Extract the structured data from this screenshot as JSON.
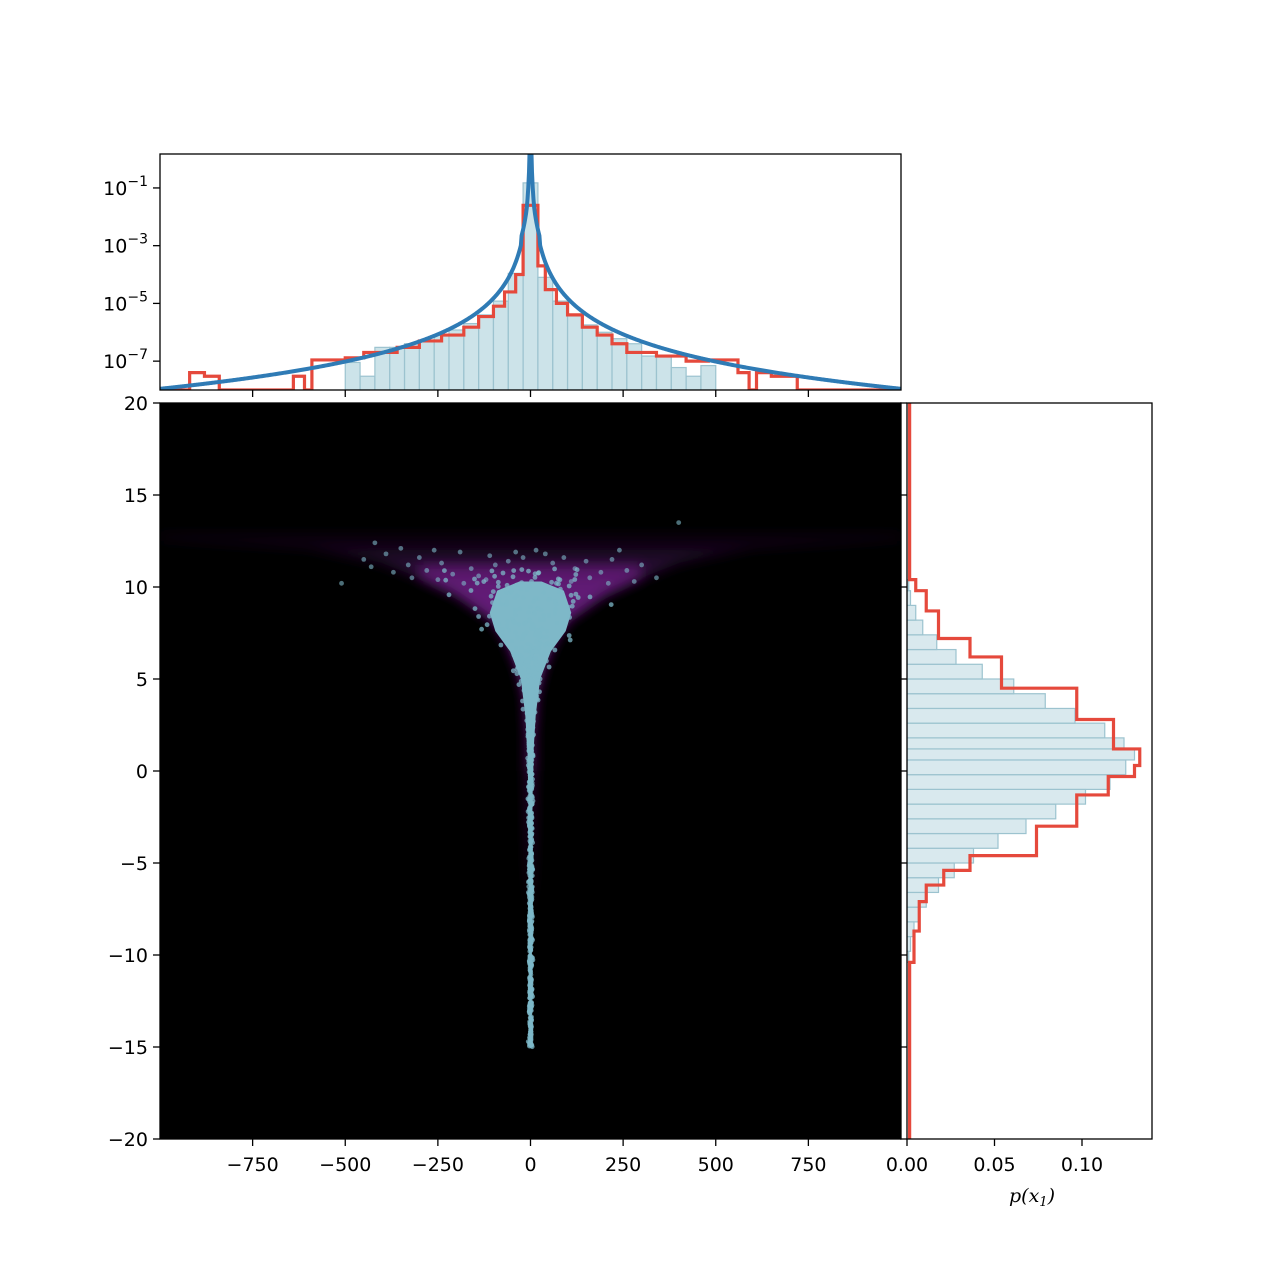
{
  "chart_data": [
    {
      "panel": "top-marginal",
      "type": "histogram+line",
      "yscale": "log",
      "xlim": [
        -1000,
        1000
      ],
      "ylim": [
        1e-08,
        1.5
      ],
      "xticks": [
        -750,
        -500,
        -250,
        0,
        250,
        500,
        750
      ],
      "yticks": [
        {
          "value": 0.1,
          "base": "10",
          "exp": "−1"
        },
        {
          "value": 0.001,
          "base": "10",
          "exp": "−3"
        },
        {
          "value": 1e-05,
          "base": "10",
          "exp": "−5"
        },
        {
          "value": 1e-07,
          "base": "10",
          "exp": "−7"
        }
      ],
      "samples_hist": {
        "color": "#b7d7e0",
        "edge": "#9cc3cf",
        "bins": [
          [
            -500,
            -460,
            9e-08
          ],
          [
            -460,
            -420,
            3e-08
          ],
          [
            -420,
            -380,
            3e-07
          ],
          [
            -380,
            -340,
            3e-07
          ],
          [
            -340,
            -300,
            4e-07
          ],
          [
            -300,
            -260,
            5e-07
          ],
          [
            -260,
            -220,
            8e-07
          ],
          [
            -220,
            -180,
            1.2e-06
          ],
          [
            -180,
            -140,
            2e-06
          ],
          [
            -140,
            -100,
            4e-06
          ],
          [
            -100,
            -60,
            1.2e-05
          ],
          [
            -60,
            -20,
            0.00011
          ],
          [
            -20,
            20,
            0.15
          ],
          [
            20,
            60,
            8e-05
          ],
          [
            60,
            100,
            1.2e-05
          ],
          [
            100,
            140,
            4e-06
          ],
          [
            140,
            180,
            1.8e-06
          ],
          [
            180,
            220,
            1e-06
          ],
          [
            220,
            260,
            6e-07
          ],
          [
            260,
            300,
            4e-07
          ],
          [
            300,
            340,
            1.5e-07
          ],
          [
            340,
            380,
            1.5e-07
          ],
          [
            380,
            420,
            6e-08
          ],
          [
            420,
            460,
            3e-08
          ],
          [
            460,
            500,
            7e-08
          ]
        ]
      },
      "flow_hist": {
        "color": "#e5493c",
        "steps": [
          [
            -1000,
            -920,
            1e-08
          ],
          [
            -920,
            -880,
            4e-08
          ],
          [
            -880,
            -840,
            3e-08
          ],
          [
            -840,
            -640,
            1e-08
          ],
          [
            -640,
            -610,
            3e-08
          ],
          [
            -610,
            -590,
            1e-08
          ],
          [
            -590,
            -500,
            1.1e-07
          ],
          [
            -500,
            -450,
            1.3e-07
          ],
          [
            -450,
            -360,
            2e-07
          ],
          [
            -360,
            -300,
            3e-07
          ],
          [
            -300,
            -240,
            5e-07
          ],
          [
            -240,
            -180,
            8e-07
          ],
          [
            -180,
            -140,
            1.5e-06
          ],
          [
            -140,
            -100,
            3.5e-06
          ],
          [
            -100,
            -70,
            8e-06
          ],
          [
            -70,
            -40,
            2.5e-05
          ],
          [
            -40,
            -20,
            0.0001
          ],
          [
            -20,
            20,
            0.025
          ],
          [
            20,
            40,
            0.0002
          ],
          [
            40,
            70,
            3e-05
          ],
          [
            70,
            100,
            1e-05
          ],
          [
            100,
            140,
            4e-06
          ],
          [
            140,
            180,
            1.5e-06
          ],
          [
            180,
            220,
            8e-07
          ],
          [
            220,
            260,
            4e-07
          ],
          [
            260,
            340,
            2e-07
          ],
          [
            340,
            420,
            1.5e-07
          ],
          [
            420,
            480,
            1e-07
          ],
          [
            480,
            560,
            1.1e-07
          ],
          [
            560,
            590,
            4e-08
          ],
          [
            590,
            610,
            1e-08
          ],
          [
            610,
            650,
            4e-08
          ],
          [
            650,
            720,
            3e-08
          ],
          [
            720,
            1000,
            1e-08
          ]
        ]
      },
      "density_line": {
        "color": "#2f7bb5",
        "peak_x": 0,
        "peak_y": 1.0,
        "y_at_250": 8.5e-07,
        "y_at_1000": 1.1e-08
      }
    },
    {
      "panel": "joint",
      "type": "scatter+density",
      "xlim": [
        -1000,
        1000
      ],
      "ylim": [
        -20,
        20
      ],
      "xticks": [
        -750,
        -500,
        -250,
        0,
        250,
        500,
        750
      ],
      "yticks": [
        -20,
        -15,
        -10,
        -5,
        0,
        5,
        10,
        15,
        20
      ],
      "background": "#000000",
      "density_color": "#7a1f8e",
      "point_color": "#7eb8c8",
      "funnel_edge": [
        [
          2,
          0
        ],
        [
          4,
          -8
        ],
        [
          6,
          2
        ],
        [
          12,
          4
        ],
        [
          30,
          5.5
        ],
        [
          60,
          7
        ],
        [
          100,
          8.2
        ],
        [
          200,
          9.6
        ],
        [
          300,
          10.5
        ],
        [
          400,
          11.3
        ],
        [
          600,
          12.1
        ],
        [
          1000,
          12.5
        ]
      ],
      "density_top": 13.2,
      "points_core_y": [
        -15,
        11
      ],
      "outliers": [
        [
          -420,
          12.4
        ],
        [
          -390,
          11.8
        ],
        [
          -350,
          12.1
        ],
        [
          -330,
          11.2
        ],
        [
          -300,
          11.6
        ],
        [
          -280,
          10.9
        ],
        [
          -260,
          12.0
        ],
        [
          -240,
          11.3
        ],
        [
          -210,
          10.7
        ],
        [
          -190,
          11.9
        ],
        [
          -160,
          11.0
        ],
        [
          -140,
          10.6
        ],
        [
          -110,
          11.7
        ],
        [
          -95,
          11.2
        ],
        [
          -60,
          11.4
        ],
        [
          -40,
          11.9
        ],
        [
          -20,
          11.6
        ],
        [
          15,
          12.0
        ],
        [
          40,
          11.8
        ],
        [
          60,
          11.3
        ],
        [
          90,
          11.6
        ],
        [
          120,
          11.0
        ],
        [
          150,
          11.4
        ],
        [
          190,
          10.8
        ],
        [
          220,
          11.5
        ],
        [
          260,
          10.9
        ],
        [
          300,
          11.2
        ],
        [
          340,
          10.5
        ],
        [
          400,
          13.5
        ],
        [
          -510,
          10.2
        ],
        [
          -430,
          11.1
        ],
        [
          -370,
          10.8
        ],
        [
          -320,
          10.5
        ],
        [
          -250,
          10.4
        ],
        [
          210,
          10.2
        ],
        [
          280,
          10.3
        ],
        [
          -180,
          10.2
        ],
        [
          -120,
          10.4
        ],
        [
          110,
          10.3
        ],
        [
          160,
          10.5
        ],
        [
          -450,
          11.5
        ],
        [
          240,
          12.0
        ]
      ]
    },
    {
      "panel": "right-marginal",
      "type": "histogram",
      "orientation": "horizontal",
      "xlim": [
        0,
        0.14
      ],
      "ylim": [
        -20,
        20
      ],
      "xticks": [
        "0.00",
        "0.05",
        "0.10"
      ],
      "xlabel": "p(x",
      "xlabel_sub": "1",
      "xlabel_close": ")",
      "samples_hist": {
        "color": "#cfe3ea",
        "edge": "#9cc3cf",
        "bins": [
          [
            -10.4,
            -9.8,
            0.001
          ],
          [
            -9.8,
            -9.0,
            0.002
          ],
          [
            -9.0,
            -8.2,
            0.004
          ],
          [
            -8.2,
            -7.4,
            0.007
          ],
          [
            -7.4,
            -6.6,
            0.011
          ],
          [
            -6.6,
            -5.8,
            0.018
          ],
          [
            -5.8,
            -5.0,
            0.027
          ],
          [
            -5.0,
            -4.2,
            0.038
          ],
          [
            -4.2,
            -3.4,
            0.052
          ],
          [
            -3.4,
            -2.6,
            0.068
          ],
          [
            -2.6,
            -1.8,
            0.085
          ],
          [
            -1.8,
            -1.0,
            0.102
          ],
          [
            -1.0,
            -0.2,
            0.116
          ],
          [
            -0.2,
            0.6,
            0.125
          ],
          [
            0.6,
            1.2,
            0.13
          ],
          [
            1.2,
            1.8,
            0.124
          ],
          [
            1.8,
            2.6,
            0.113
          ],
          [
            2.6,
            3.4,
            0.096
          ],
          [
            3.4,
            4.2,
            0.079
          ],
          [
            4.2,
            5.0,
            0.061
          ],
          [
            5.0,
            5.8,
            0.043
          ],
          [
            5.8,
            6.6,
            0.028
          ],
          [
            6.6,
            7.4,
            0.017
          ],
          [
            7.4,
            8.2,
            0.009
          ],
          [
            8.2,
            9.0,
            0.005
          ],
          [
            9.0,
            9.8,
            0.002
          ],
          [
            9.8,
            10.4,
            0.001
          ]
        ]
      },
      "flow_hist": {
        "color": "#e5493c",
        "steps": [
          [
            -20,
            -10.4,
            0.0015
          ],
          [
            -10.4,
            -8.7,
            0.004
          ],
          [
            -8.7,
            -7.1,
            0.007
          ],
          [
            -7.1,
            -6.2,
            0.011
          ],
          [
            -6.2,
            -5.4,
            0.021
          ],
          [
            -5.4,
            -4.6,
            0.036
          ],
          [
            -4.6,
            -3.0,
            0.074
          ],
          [
            -3.0,
            -1.3,
            0.097
          ],
          [
            -1.3,
            -0.3,
            0.115
          ],
          [
            -0.3,
            0.3,
            0.13
          ],
          [
            0.3,
            1.2,
            0.133
          ],
          [
            1.2,
            2.8,
            0.118
          ],
          [
            2.8,
            4.5,
            0.097
          ],
          [
            4.5,
            6.2,
            0.054
          ],
          [
            6.2,
            7.2,
            0.036
          ],
          [
            7.2,
            8.7,
            0.018
          ],
          [
            8.7,
            9.8,
            0.011
          ],
          [
            9.8,
            10.4,
            0.005
          ],
          [
            10.4,
            20,
            0.0015
          ]
        ]
      }
    }
  ]
}
